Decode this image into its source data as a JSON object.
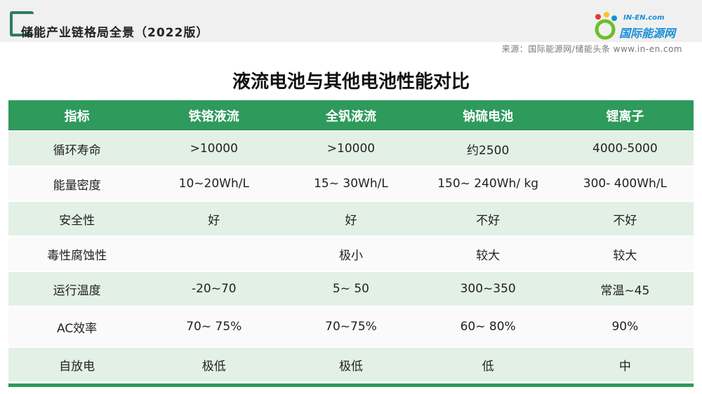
{
  "header": {
    "title": "储能产业链格局全景（2022版）",
    "logo_top": "IN-EN.com",
    "logo_main": "国际能源网",
    "source": "来源：国际能源网/储能头条 www.in-en.com"
  },
  "title": "液流电池与其他电池性能对比",
  "table": {
    "columns": [
      "指标",
      "铁铬液流",
      "全钒液流",
      "钠硫电池",
      "锂离子"
    ],
    "rows": [
      [
        "循环寿命",
        ">10000",
        ">10000",
        "约2500",
        "4000-5000"
      ],
      [
        "能量密度",
        "10~20Wh/L",
        "15~ 30Wh/L",
        "150~ 240Wh/ kg",
        "300- 400Wh/L"
      ],
      [
        "安全性",
        "好",
        "好",
        "不好",
        "不好"
      ],
      [
        "毒性腐蚀性",
        null,
        "极小",
        "较大",
        "较大"
      ],
      [
        "运行温度",
        "-20~70",
        "5~ 50",
        "300~350",
        "常温~45"
      ],
      [
        "AC效率",
        "70~ 75%",
        "70~75%",
        "60~ 80%",
        "90%"
      ],
      [
        "自放电",
        "极低",
        "极低",
        "低",
        "中"
      ]
    ]
  }
}
